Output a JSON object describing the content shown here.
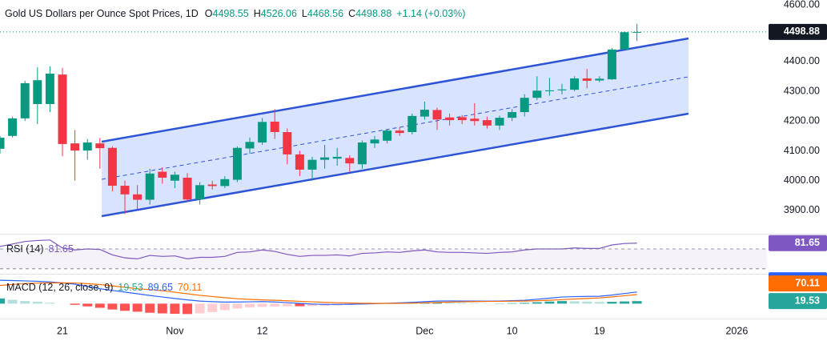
{
  "chart_data": [
    {
      "type": "candlestick",
      "title": "Gold US Dollars per Ounce Spot Prices, 1D",
      "ohlc_labels": [
        "O",
        "H",
        "L",
        "C"
      ],
      "change_label": "+1.14 (+0.03%)",
      "categories": [
        null,
        null,
        null,
        null,
        null,
        "21",
        null,
        null,
        null,
        null,
        null,
        null,
        null,
        null,
        "Nov",
        null,
        null,
        null,
        null,
        null,
        null,
        "12",
        null,
        null,
        null,
        null,
        null,
        null,
        null,
        null,
        null,
        null,
        null,
        null,
        "Dec",
        null,
        null,
        null,
        null,
        null,
        null,
        "10",
        null,
        null,
        null,
        null,
        null,
        null,
        "19",
        null,
        null,
        null,
        null,
        null,
        null,
        null,
        null,
        null,
        null,
        "2026",
        null,
        null
      ],
      "open": [
        4107,
        4150,
        4209,
        4257,
        4257,
        4356,
        4125,
        4101,
        4125,
        4110,
        3983,
        3954,
        3936,
        4030,
        4000,
        4010,
        3937,
        3987,
        3982,
        4003,
        4108,
        4128,
        4198,
        4163,
        4088,
        4037,
        4070,
        4074,
        4076,
        4055,
        4125,
        4134,
        4168,
        4163,
        4215,
        4237,
        4212,
        4213,
        4208,
        4203,
        4185,
        4211,
        4230,
        4278,
        4300,
        4303,
        4305,
        4343,
        4336,
        4340,
        4440,
        4498.55,
        null,
        null,
        null,
        null,
        null,
        null,
        null,
        null,
        null,
        null
      ],
      "high": [
        4150,
        4215,
        4335,
        4380,
        4383,
        4378,
        4170,
        4140,
        4143,
        4115,
        4000,
        3985,
        4040,
        4045,
        4030,
        4025,
        3995,
        4000,
        4015,
        4115,
        4145,
        4210,
        4240,
        4175,
        4100,
        4080,
        4120,
        4110,
        4085,
        4135,
        4150,
        4172,
        4180,
        4225,
        4265,
        4245,
        4225,
        4220,
        4260,
        4215,
        4218,
        4240,
        4290,
        4350,
        4345,
        4325,
        4350,
        4375,
        4350,
        4445,
        4500,
        4526.06,
        null,
        null,
        null,
        null,
        null,
        null,
        null,
        null,
        null,
        null
      ],
      "low": [
        4090,
        4145,
        4200,
        4190,
        4230,
        4082,
        4000,
        4070,
        4040,
        3965,
        3888,
        3905,
        3920,
        3990,
        3975,
        3930,
        3920,
        3970,
        3975,
        3995,
        4090,
        4120,
        4140,
        4055,
        4015,
        4000,
        4040,
        4050,
        4030,
        4040,
        4110,
        4125,
        4150,
        4155,
        4205,
        4170,
        4185,
        4190,
        4185,
        4175,
        4170,
        4200,
        4215,
        4270,
        4285,
        4290,
        4300,
        4310,
        4330,
        4338,
        4440,
        4468.56,
        null,
        null,
        null,
        null,
        null,
        null,
        null,
        null,
        null,
        null
      ],
      "close": [
        4144,
        4209,
        4327,
        4337,
        4359,
        4123,
        4101,
        4128,
        4109,
        3983,
        3954,
        3936,
        4024,
        4010,
        4020,
        3937,
        3985,
        3982,
        4005,
        4110,
        4130,
        4197,
        4163,
        4088,
        4037,
        4070,
        4078,
        4080,
        4058,
        4128,
        4138,
        4168,
        4160,
        4217,
        4238,
        4205,
        4203,
        4203,
        4200,
        4185,
        4211,
        4230,
        4278,
        4302,
        4303,
        4306,
        4343,
        4335,
        4342,
        4440,
        4498,
        4498.88,
        null,
        null,
        null,
        null,
        null,
        null,
        null,
        null,
        null,
        null
      ],
      "up_color": "#089981",
      "down_color": "#f23645",
      "ylim": [
        3822,
        4606
      ],
      "yticks": [
        {
          "value": 3900,
          "label": "3900.00"
        },
        {
          "value": 4000,
          "label": "4000.00"
        },
        {
          "value": 4100,
          "label": "4100.00"
        },
        {
          "value": 4200,
          "label": "4200.00"
        },
        {
          "value": 4300,
          "label": "4300.00"
        },
        {
          "value": 4400,
          "label": "4400.00"
        },
        {
          "value": 4600,
          "label": "4600.00"
        }
      ],
      "last_price_line": true
    },
    {
      "type": "line",
      "title": "RSI (14)",
      "values": [
        75,
        80,
        85,
        87,
        88,
        72,
        68,
        70,
        69,
        58,
        52,
        50,
        57,
        55,
        56,
        50,
        53,
        53,
        55,
        63,
        64,
        68,
        65,
        59,
        55,
        57,
        57,
        58,
        56,
        61,
        62,
        64,
        63,
        66,
        68,
        64,
        63,
        63,
        62,
        61,
        63,
        64,
        68,
        70,
        70,
        70,
        72,
        71,
        71,
        78,
        81,
        81.65,
        null,
        null,
        null,
        null,
        null,
        null,
        null,
        null,
        null,
        null
      ],
      "color": "#7e57c2",
      "ylim": [
        20,
        99
      ],
      "bands": [
        70,
        30
      ]
    },
    {
      "type": "macd",
      "title": "MACD (12, 26, close, 9)",
      "histogram": [
        40,
        30,
        20,
        14,
        7,
        0,
        -9,
        -21,
        -32,
        -45,
        -55,
        -62,
        -70,
        -75,
        -78,
        -80,
        -75,
        -65,
        -50,
        -38,
        -30,
        -25,
        -22,
        -20,
        -20,
        -19,
        -17,
        -14,
        -10,
        -6,
        -2,
        1,
        4,
        6,
        9,
        11,
        9,
        6,
        4,
        2,
        2,
        4,
        6,
        11,
        16,
        20,
        18,
        16,
        13,
        14,
        17,
        19.53,
        null,
        null,
        null,
        null,
        null,
        null,
        null,
        null,
        null,
        null
      ],
      "histogram_colors": [
        "#26a69a",
        "#b2dfdb",
        "#ff5252",
        "#ffcdd2"
      ],
      "macd": {
        "color": "#2962ff",
        "values": [
          180,
          178,
          175,
          172,
          167,
          160,
          150,
          133,
          115,
          102,
          89,
          76,
          63,
          51,
          40,
          29,
          20,
          15,
          12,
          13,
          14,
          16,
          13,
          8,
          2,
          -3,
          -6,
          -6,
          -5,
          -3,
          0,
          3,
          6,
          10,
          15,
          20,
          21,
          20,
          20,
          19,
          20,
          23,
          26,
          34,
          42,
          51,
          54,
          56,
          57,
          66,
          78,
          89.65,
          null,
          null,
          null,
          null,
          null,
          null,
          null,
          null,
          null,
          null
        ]
      },
      "signal": {
        "color": "#ff6d00",
        "values": [
          140,
          148,
          155,
          158,
          160,
          160,
          159,
          154,
          147,
          137,
          126,
          115,
          108,
          100,
          88,
          76,
          64,
          55,
          46,
          38,
          33,
          29,
          26,
          22,
          18,
          14,
          10,
          7,
          5,
          3,
          2,
          2,
          2,
          4,
          6,
          9,
          12,
          14,
          16,
          17,
          18,
          19,
          20,
          23,
          26,
          31,
          36,
          40,
          44,
          52,
          61,
          70.11,
          null,
          null,
          null,
          null,
          null,
          null,
          null,
          null,
          null,
          null
        ]
      },
      "ylim": [
        -115,
        224
      ]
    }
  ]
}
